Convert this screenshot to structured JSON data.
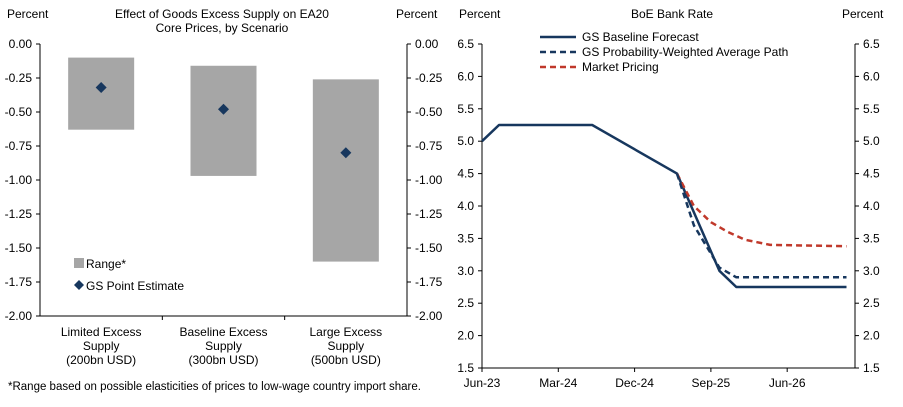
{
  "chart_data": [
    {
      "type": "bar",
      "title_lines": [
        "Effect of Goods Excess Supply on EA20",
        "Core Prices, by Scenario"
      ],
      "left_unit": "Percent",
      "right_unit": "Percent",
      "ylim": [
        -2.0,
        0.0
      ],
      "yticks": [
        "0.00",
        "-0.25",
        "-0.50",
        "-0.75",
        "-1.00",
        "-1.25",
        "-1.50",
        "-1.75",
        "-2.00"
      ],
      "grid": false,
      "legend_position": "lower-left",
      "categories": [
        {
          "lines": [
            "Limited Excess",
            "Supply",
            "(200bn USD)"
          ]
        },
        {
          "lines": [
            "Baseline Excess",
            "Supply",
            "(300bn USD)"
          ]
        },
        {
          "lines": [
            "Large Excess",
            "Supply",
            "(500bn USD)"
          ]
        }
      ],
      "series": [
        {
          "name": "Range*",
          "type": "range_bar",
          "color": "#a6a6a6",
          "values": [
            [
              -0.63,
              -0.1
            ],
            [
              -0.97,
              -0.16
            ],
            [
              -1.6,
              -0.26
            ]
          ]
        },
        {
          "name": "GS Point Estimate",
          "type": "point",
          "color": "#17375e",
          "values": [
            -0.32,
            -0.48,
            -0.8
          ]
        }
      ]
    },
    {
      "type": "line",
      "title": "BoE Bank Rate",
      "left_unit": "Percent",
      "right_unit": "Percent",
      "ylim": [
        1.5,
        6.5
      ],
      "yticks": [
        "6.5",
        "6.0",
        "5.5",
        "5.0",
        "4.5",
        "4.0",
        "3.5",
        "3.0",
        "2.5",
        "2.0",
        "1.5"
      ],
      "xlim": [
        "2023-06",
        "2027-02"
      ],
      "xticks": [
        {
          "label": "Jun-23",
          "date": "2023-06"
        },
        {
          "label": "Mar-24",
          "date": "2024-03"
        },
        {
          "label": "Dec-24",
          "date": "2024-12"
        },
        {
          "label": "Sep-25",
          "date": "2025-09"
        },
        {
          "label": "Jun-26",
          "date": "2026-06"
        }
      ],
      "grid": false,
      "legend_position": "top",
      "series": [
        {
          "name": "GS Baseline Forecast",
          "color": "#17375e",
          "dash": "solid",
          "points": [
            [
              "2023-06",
              5.0
            ],
            [
              "2023-08",
              5.25
            ],
            [
              "2024-07",
              5.25
            ],
            [
              "2025-05",
              4.5
            ],
            [
              "2025-10",
              3.0
            ],
            [
              "2025-12",
              2.75
            ],
            [
              "2027-01",
              2.75
            ]
          ]
        },
        {
          "name": "GS Probability-Weighted Average Path",
          "color": "#17375e",
          "dash": "dashed",
          "points": [
            [
              "2025-05",
              4.5
            ],
            [
              "2025-07",
              3.7
            ],
            [
              "2025-10",
              3.05
            ],
            [
              "2025-12",
              2.9
            ],
            [
              "2027-01",
              2.9
            ]
          ]
        },
        {
          "name": "Market Pricing",
          "color": "#c0392b",
          "dash": "dashed",
          "points": [
            [
              "2025-05",
              4.5
            ],
            [
              "2025-07",
              4.0
            ],
            [
              "2025-09",
              3.75
            ],
            [
              "2025-11",
              3.6
            ],
            [
              "2026-01",
              3.48
            ],
            [
              "2026-04",
              3.4
            ],
            [
              "2027-01",
              3.38
            ]
          ]
        }
      ]
    }
  ],
  "footnote": "*Range based on possible elasticities of prices to low-wage country import share."
}
